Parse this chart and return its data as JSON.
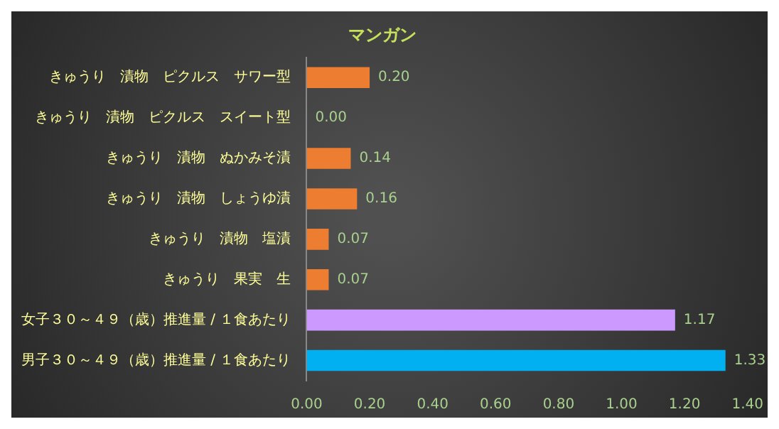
{
  "chart_data": {
    "type": "bar",
    "orientation": "horizontal",
    "title": "マンガン",
    "categories": [
      "きゅうり　漬物　ピクルス　サワー型",
      "きゅうり　漬物　ピクルス　スイート型",
      "きゅうり　漬物　ぬかみそ漬",
      "きゅうり　漬物　しょうゆ漬",
      "きゅうり　漬物　塩漬",
      "きゅうり　果実　生",
      "女子３０～４９（歳）推進量 / １食あたり",
      "男子３０～４９（歳）推進量 / １食あたり"
    ],
    "values": [
      0.2,
      0,
      0.14,
      0.16,
      0.07,
      0.07,
      1.17,
      1.33
    ],
    "colors": [
      "#ed7d31",
      "#ed7d31",
      "#ed7d31",
      "#ed7d31",
      "#ed7d31",
      "#ed7d31",
      "#cc99ff",
      "#00b0f0"
    ],
    "value_labels": [
      "0.20",
      "0.00",
      "0.14",
      "0.16",
      "0.07",
      "0.07",
      "1.17",
      "1.33"
    ],
    "xlim": [
      0,
      1.4
    ],
    "xticks": [
      {
        "value": 0,
        "label": "0.00"
      },
      {
        "value": 0.2,
        "label": "0.20"
      },
      {
        "value": 0.4,
        "label": "0.40"
      },
      {
        "value": 0.6,
        "label": "0.60"
      },
      {
        "value": 0.8,
        "label": "0.80"
      },
      {
        "value": 1,
        "label": "1.00"
      },
      {
        "value": 1.2,
        "label": "1.20"
      },
      {
        "value": 1.4,
        "label": "1.40"
      }
    ],
    "legend": false
  }
}
